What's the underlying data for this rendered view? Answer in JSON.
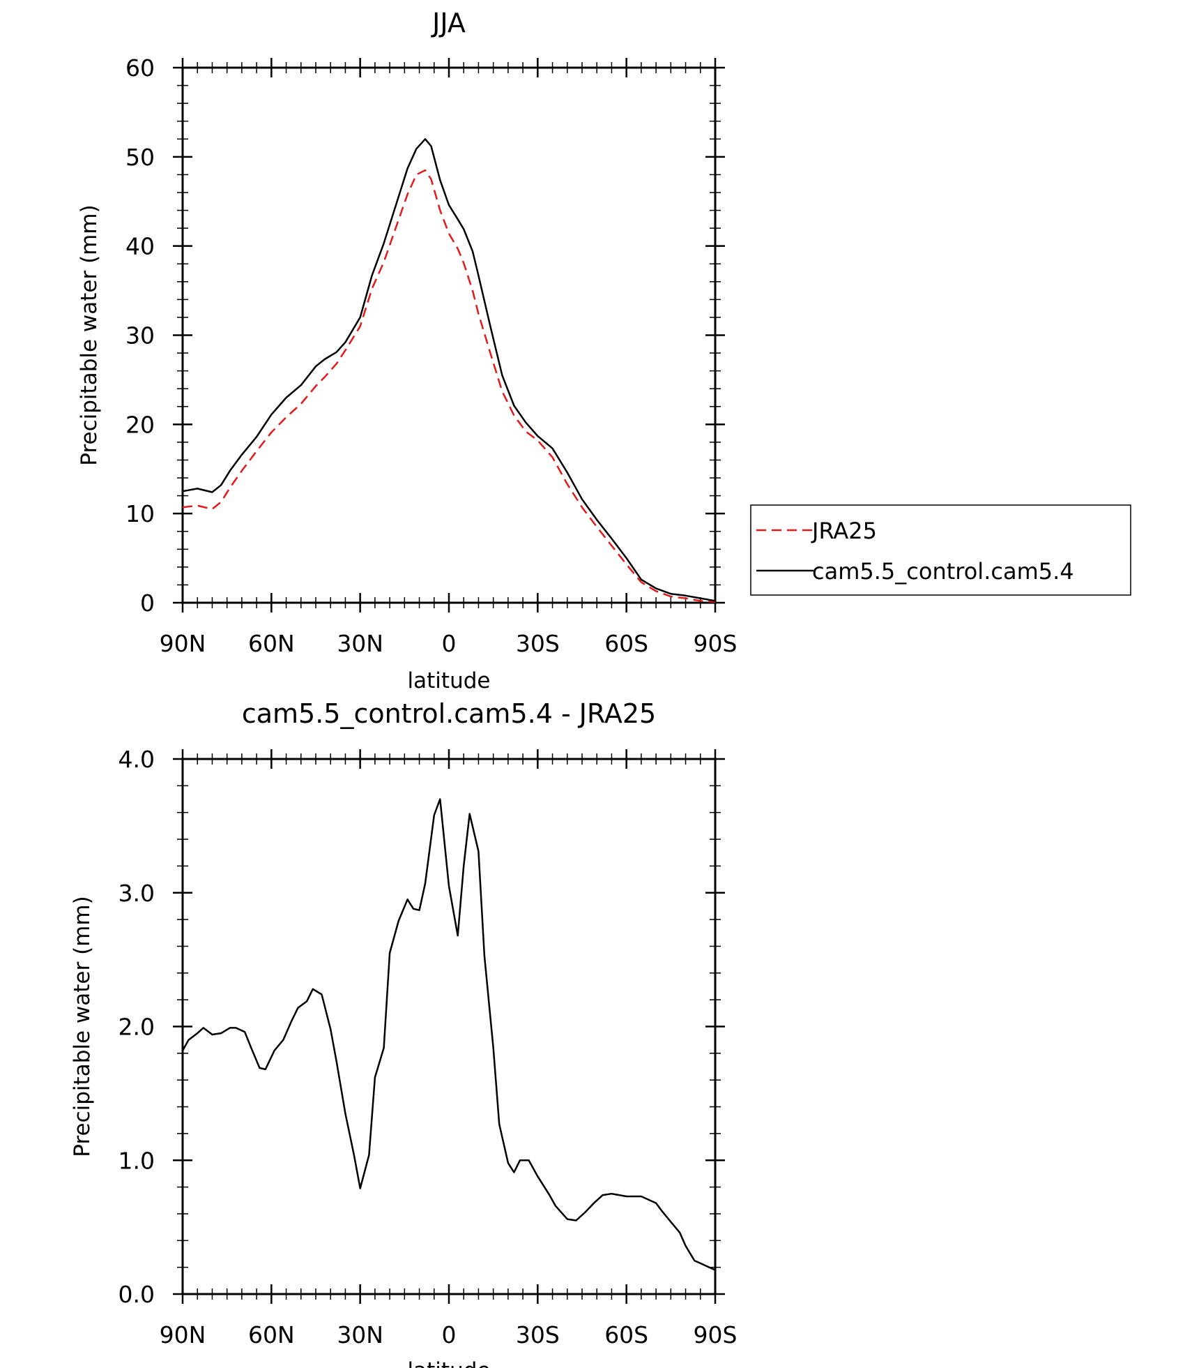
{
  "chart_data": [
    {
      "type": "line",
      "title": "JJA",
      "xlabel": "latitude",
      "ylabel": "Precipitable water (mm)",
      "xlim": [
        90,
        -90
      ],
      "ylim": [
        0,
        60
      ],
      "xticks": [
        90,
        60,
        30,
        0,
        -30,
        -60,
        -90
      ],
      "xtick_labels": [
        "90N",
        "60N",
        "30N",
        "0",
        "30S",
        "60S",
        "90S"
      ],
      "yticks": [
        0,
        10,
        20,
        30,
        40,
        50,
        60
      ],
      "ytick_labels": [
        "0",
        "10",
        "20",
        "30",
        "40",
        "50",
        "60"
      ],
      "legend_placement": "right, outside plot area",
      "x": [
        90,
        85,
        80,
        77,
        74,
        70,
        65,
        60,
        55,
        50,
        45,
        42,
        38,
        35,
        30,
        26,
        22,
        18,
        14,
        11,
        8,
        6,
        3,
        0,
        -3,
        -5,
        -8,
        -10,
        -14,
        -18,
        -22,
        -26,
        -30,
        -35,
        -40,
        -45,
        -50,
        -55,
        -60,
        -65,
        -70,
        -75,
        -80,
        -85,
        -90
      ],
      "series": [
        {
          "name": "JRA25",
          "color": "#e31a1c",
          "dash": "dashed",
          "values": [
            10.7,
            10.9,
            10.5,
            11.3,
            12.9,
            14.8,
            17.0,
            19.1,
            20.8,
            22.3,
            24.3,
            25.3,
            26.8,
            28.3,
            31.0,
            35.2,
            38.2,
            42.0,
            45.8,
            48.0,
            48.5,
            47.5,
            44.0,
            41.4,
            39.7,
            38.1,
            35.0,
            32.4,
            28.0,
            23.7,
            21.0,
            19.2,
            18.2,
            16.3,
            13.3,
            10.7,
            8.5,
            6.4,
            4.3,
            2.3,
            1.3,
            0.7,
            0.5,
            0.2,
            0.1
          ]
        },
        {
          "name": "cam5.5_control.cam5.4",
          "color": "#000000",
          "dash": "solid",
          "values": [
            12.5,
            12.8,
            12.4,
            13.2,
            14.8,
            16.6,
            18.6,
            21.1,
            23.0,
            24.4,
            26.5,
            27.3,
            28.1,
            29.2,
            32.0,
            36.7,
            40.3,
            44.5,
            48.7,
            50.9,
            52.0,
            51.2,
            47.4,
            44.6,
            43.0,
            41.9,
            39.4,
            36.7,
            31.0,
            25.5,
            22.1,
            20.2,
            18.7,
            17.3,
            14.6,
            11.6,
            9.3,
            7.2,
            5.0,
            2.6,
            1.6,
            1.0,
            0.8,
            0.5,
            0.2
          ]
        }
      ]
    },
    {
      "type": "line",
      "title": "cam5.5_control.cam5.4 - JRA25",
      "xlabel": "latitude",
      "ylabel": "Precipitable water (mm)",
      "xlim": [
        90,
        -90
      ],
      "ylim": [
        0,
        4
      ],
      "xticks": [
        90,
        60,
        30,
        0,
        -30,
        -60,
        -90
      ],
      "xtick_labels": [
        "90N",
        "60N",
        "30N",
        "0",
        "30S",
        "60S",
        "90S"
      ],
      "yticks": [
        0,
        1,
        2,
        3,
        4
      ],
      "ytick_labels": [
        "0.0",
        "1.0",
        "2.0",
        "3.0",
        "4.0"
      ],
      "x": [
        90,
        88,
        85,
        83,
        80,
        77,
        74,
        72,
        69,
        67,
        64,
        62,
        59,
        56,
        53,
        51,
        48,
        46,
        43,
        40,
        38,
        35,
        32,
        30,
        27,
        25,
        22,
        20,
        17,
        14,
        12,
        10,
        8,
        5,
        3,
        0,
        -3,
        -5,
        -7,
        -10,
        -12,
        -15,
        -17,
        -20,
        -22,
        -24,
        -27,
        -30,
        -34,
        -36,
        -40,
        -43,
        -46,
        -49,
        -52,
        -55,
        -60,
        -65,
        -70,
        -72,
        -75,
        -78,
        -80,
        -83,
        -85,
        -88,
        -90
      ],
      "series": [
        {
          "name": "",
          "color": "#000000",
          "dash": "solid",
          "values": [
            1.82,
            1.9,
            1.95,
            1.99,
            1.94,
            1.95,
            1.99,
            1.99,
            1.96,
            1.85,
            1.69,
            1.68,
            1.82,
            1.9,
            2.05,
            2.14,
            2.19,
            2.28,
            2.24,
            1.98,
            1.74,
            1.35,
            1.03,
            0.79,
            1.04,
            1.62,
            1.84,
            2.55,
            2.79,
            2.95,
            2.88,
            2.87,
            3.07,
            3.58,
            3.7,
            3.05,
            2.68,
            3.2,
            3.59,
            3.31,
            2.53,
            1.84,
            1.27,
            0.98,
            0.91,
            1.0,
            1.0,
            0.88,
            0.74,
            0.66,
            0.56,
            0.55,
            0.61,
            0.68,
            0.74,
            0.75,
            0.73,
            0.73,
            0.68,
            0.62,
            0.54,
            0.46,
            0.36,
            0.25,
            0.23,
            0.2,
            0.18
          ]
        }
      ]
    }
  ]
}
